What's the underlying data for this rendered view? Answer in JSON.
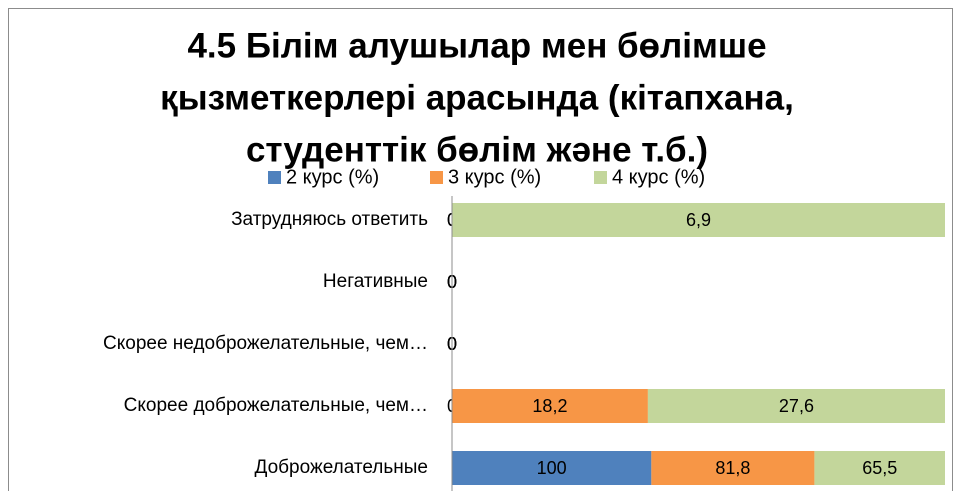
{
  "chart_data": {
    "type": "bar",
    "orientation": "horizontal",
    "stacking": "percent",
    "title": [
      "4.5 Білім алушылар мен бөлімше",
      "қызметкерлері арасында (кітапхана,",
      "студенттік бөлім және т.б.)"
    ],
    "categories": [
      "Доброжелательные",
      "Скорее доброжелательные, чем…",
      "Скорее недоброжелательные, чем…",
      "Негативные",
      "Затрудняюсь ответить"
    ],
    "series": [
      {
        "name": "2 курс (%)",
        "color": "#4f81bd",
        "values": [
          100,
          0,
          0,
          0,
          0
        ],
        "value_labels": [
          "100",
          "0",
          "0",
          "0",
          "0"
        ]
      },
      {
        "name": "3 курс (%)",
        "color": "#f79646",
        "values": [
          81.8,
          18.2,
          0,
          0,
          0
        ],
        "value_labels": [
          "81,8",
          "18,2",
          "0",
          "0",
          "0"
        ]
      },
      {
        "name": "4 курс (%)",
        "color": "#c3d69b",
        "values": [
          65.5,
          27.6,
          0,
          0,
          6.9
        ],
        "value_labels": [
          "65,5",
          "27,6",
          "0",
          "0",
          "6,9"
        ]
      }
    ],
    "legend": "top"
  }
}
